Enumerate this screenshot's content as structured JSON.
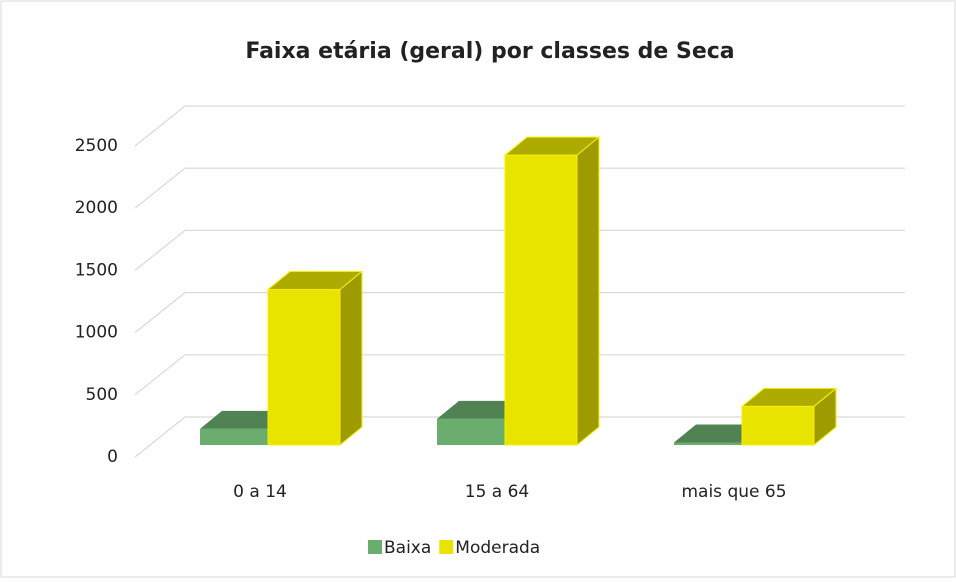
{
  "chart_data": {
    "type": "bar3d",
    "title": "Faixa etária (geral) por classes de Seca",
    "categories": [
      "0 a 14",
      "15 a 64",
      "mais que 65"
    ],
    "series": [
      {
        "name": "Baixa",
        "color": "#6aad6f",
        "values": [
          130,
          210,
          20
        ]
      },
      {
        "name": "Moderada",
        "color": "#e8e400",
        "values": [
          1250,
          2330,
          310
        ]
      }
    ],
    "ylim": [
      0,
      2500
    ],
    "yticks": [
      0,
      500,
      1000,
      1500,
      2000,
      2500
    ],
    "grid": true,
    "legend": "bottom"
  }
}
